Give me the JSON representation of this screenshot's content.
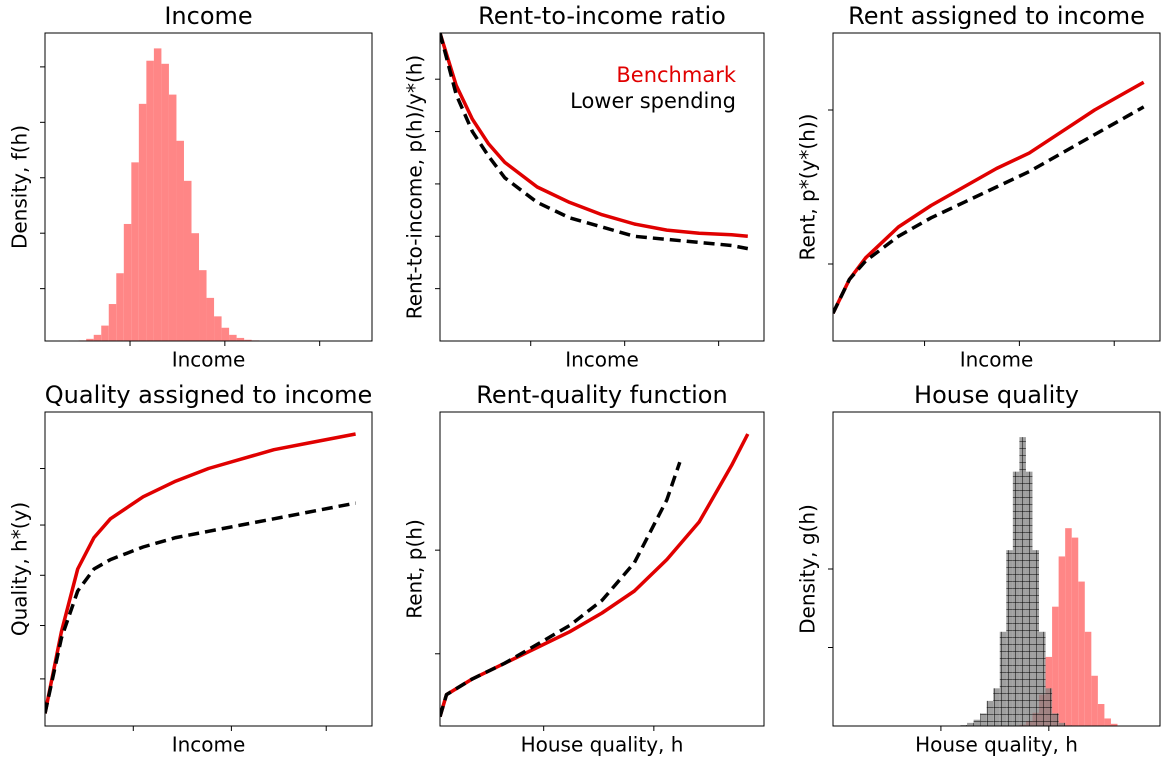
{
  "chart_data": [
    {
      "type": "histogram",
      "title": "Income",
      "xlabel": "Income",
      "ylabel": "Density, f(h)",
      "xlim": [
        0,
        1
      ],
      "ylim": [
        0,
        1
      ],
      "xticks": [
        0.26,
        0.55,
        0.84
      ],
      "yticks": [
        0.17,
        0.35,
        0.53,
        0.71,
        0.89
      ],
      "color": "#ff8080",
      "bins": [
        0.08,
        0.103,
        0.126,
        0.149,
        0.172,
        0.195,
        0.218,
        0.241,
        0.264,
        0.287,
        0.31,
        0.333,
        0.356,
        0.379,
        0.402,
        0.425,
        0.448,
        0.471,
        0.494,
        0.517,
        0.54,
        0.563,
        0.586,
        0.609,
        0.632,
        0.655,
        0.678,
        0.701,
        0.724,
        0.747,
        0.77
      ],
      "values": [
        0,
        0.002,
        0.007,
        0.02,
        0.05,
        0.12,
        0.22,
        0.38,
        0.58,
        0.77,
        0.91,
        0.95,
        0.9,
        0.8,
        0.65,
        0.52,
        0.35,
        0.23,
        0.14,
        0.08,
        0.043,
        0.02,
        0.01,
        0.004,
        0.002,
        0.001,
        0,
        0,
        0,
        0
      ]
    },
    {
      "type": "line",
      "title": "Rent-to-income ratio",
      "xlabel": "Income",
      "ylabel": "Rent-to-income, p(h)/y*(h)",
      "xlim": [
        0,
        1
      ],
      "ylim": [
        0,
        1
      ],
      "xticks": [
        0.28,
        0.57,
        0.86
      ],
      "yticks": [
        0.17,
        0.34,
        0.51,
        0.68,
        0.85
      ],
      "legend": "upper right",
      "series": [
        {
          "name": "Benchmark",
          "color": "#e00000",
          "linestyle": "solid",
          "x": [
            0,
            0.05,
            0.1,
            0.15,
            0.2,
            0.3,
            0.4,
            0.5,
            0.6,
            0.7,
            0.8,
            0.9,
            0.95
          ],
          "values": [
            1.0,
            0.83,
            0.72,
            0.64,
            0.58,
            0.5,
            0.45,
            0.41,
            0.38,
            0.36,
            0.35,
            0.345,
            0.34
          ]
        },
        {
          "name": "Lower spending",
          "color": "#000000",
          "linestyle": "dashed",
          "x": [
            0,
            0.05,
            0.1,
            0.15,
            0.2,
            0.3,
            0.4,
            0.5,
            0.6,
            0.7,
            0.8,
            0.9,
            0.95
          ],
          "values": [
            1.0,
            0.8,
            0.68,
            0.6,
            0.53,
            0.45,
            0.4,
            0.37,
            0.34,
            0.33,
            0.32,
            0.31,
            0.3
          ]
        }
      ]
    },
    {
      "type": "line",
      "title": "Rent assigned to income",
      "xlabel": "Income",
      "ylabel": "Rent, p*(y*(h))",
      "xlim": [
        0,
        1
      ],
      "ylim": [
        0,
        1
      ],
      "xticks": [
        0.28,
        0.57,
        0.86
      ],
      "yticks": [
        0.25,
        0.75
      ],
      "series": [
        {
          "color": "#e00000",
          "linestyle": "solid",
          "x": [
            0,
            0.05,
            0.1,
            0.2,
            0.3,
            0.4,
            0.5,
            0.6,
            0.7,
            0.8,
            0.9,
            0.95
          ],
          "values": [
            0.09,
            0.2,
            0.27,
            0.37,
            0.44,
            0.5,
            0.56,
            0.61,
            0.68,
            0.75,
            0.81,
            0.84
          ]
        },
        {
          "color": "#000000",
          "linestyle": "dashed",
          "x": [
            0,
            0.05,
            0.1,
            0.2,
            0.3,
            0.4,
            0.5,
            0.6,
            0.7,
            0.8,
            0.9,
            0.95
          ],
          "values": [
            0.09,
            0.2,
            0.26,
            0.34,
            0.4,
            0.45,
            0.5,
            0.55,
            0.61,
            0.67,
            0.73,
            0.76
          ]
        }
      ]
    },
    {
      "type": "line",
      "title": "Quality assigned to income",
      "xlabel": "Income",
      "ylabel": "Quality, h*(y)",
      "xlim": [
        0,
        1
      ],
      "ylim": [
        0,
        1
      ],
      "xticks": [
        0.27,
        0.57,
        0.86
      ],
      "yticks": [
        0.15,
        0.32,
        0.48,
        0.64,
        0.82
      ],
      "series": [
        {
          "color": "#e00000",
          "linestyle": "solid",
          "x": [
            0,
            0.05,
            0.1,
            0.15,
            0.2,
            0.3,
            0.4,
            0.5,
            0.6,
            0.7,
            0.8,
            0.9,
            0.95
          ],
          "values": [
            0.04,
            0.3,
            0.5,
            0.6,
            0.66,
            0.73,
            0.78,
            0.82,
            0.85,
            0.88,
            0.9,
            0.92,
            0.93
          ]
        },
        {
          "color": "#000000",
          "linestyle": "dashed",
          "x": [
            0,
            0.05,
            0.1,
            0.15,
            0.2,
            0.3,
            0.4,
            0.5,
            0.6,
            0.7,
            0.8,
            0.9,
            0.95
          ],
          "values": [
            0.04,
            0.28,
            0.43,
            0.5,
            0.53,
            0.57,
            0.6,
            0.62,
            0.64,
            0.66,
            0.68,
            0.7,
            0.71
          ]
        }
      ]
    },
    {
      "type": "line",
      "title": "Rent-quality function",
      "xlabel": "House quality, h",
      "ylabel": "Rent, p(h)",
      "xlim": [
        0,
        1
      ],
      "ylim": [
        0,
        1
      ],
      "xticks": [
        0.32,
        0.66
      ],
      "yticks": [
        0.23,
        0.56
      ],
      "series": [
        {
          "color": "#e00000",
          "linestyle": "solid",
          "x": [
            0,
            0.02,
            0.1,
            0.2,
            0.3,
            0.4,
            0.5,
            0.6,
            0.7,
            0.8,
            0.9,
            0.95
          ],
          "values": [
            0.03,
            0.1,
            0.15,
            0.2,
            0.25,
            0.3,
            0.36,
            0.43,
            0.53,
            0.65,
            0.83,
            0.93
          ]
        },
        {
          "color": "#000000",
          "linestyle": "dashed",
          "x": [
            0,
            0.02,
            0.1,
            0.2,
            0.3,
            0.4,
            0.5,
            0.6,
            0.65,
            0.7,
            0.74
          ],
          "values": [
            0.03,
            0.1,
            0.15,
            0.2,
            0.26,
            0.32,
            0.4,
            0.52,
            0.62,
            0.72,
            0.84
          ]
        }
      ]
    },
    {
      "type": "histogram",
      "title": "House quality",
      "xlabel": "House quality, h",
      "ylabel": "Density, g(h)",
      "xlim": [
        0,
        1
      ],
      "ylim": [
        0,
        1
      ],
      "xticks": [
        0.33,
        0.66
      ],
      "yticks": [
        0.25,
        0.5
      ],
      "bins": [
        0.35,
        0.37,
        0.39,
        0.41,
        0.43,
        0.45,
        0.47,
        0.49,
        0.51,
        0.53,
        0.55,
        0.57,
        0.59,
        0.61,
        0.63,
        0.65,
        0.67,
        0.69,
        0.71,
        0.73,
        0.75,
        0.77,
        0.79,
        0.81,
        0.83,
        0.85,
        0.87
      ],
      "series": [
        {
          "color": "#ff8080",
          "values": [
            0,
            0,
            0,
            0,
            0,
            0,
            0,
            0,
            0,
            0,
            0.001,
            0.004,
            0.014,
            0.042,
            0.1,
            0.22,
            0.38,
            0.54,
            0.63,
            0.6,
            0.46,
            0.3,
            0.16,
            0.07,
            0.024,
            0.007
          ]
        },
        {
          "color": "#808080",
          "hatch": "grid",
          "values": [
            0,
            0,
            0.003,
            0.01,
            0.02,
            0.04,
            0.08,
            0.12,
            0.3,
            0.56,
            0.81,
            0.92,
            0.81,
            0.56,
            0.3,
            0.12,
            0.04,
            0.01,
            0.002,
            0,
            0,
            0,
            0,
            0,
            0,
            0
          ]
        }
      ]
    }
  ]
}
